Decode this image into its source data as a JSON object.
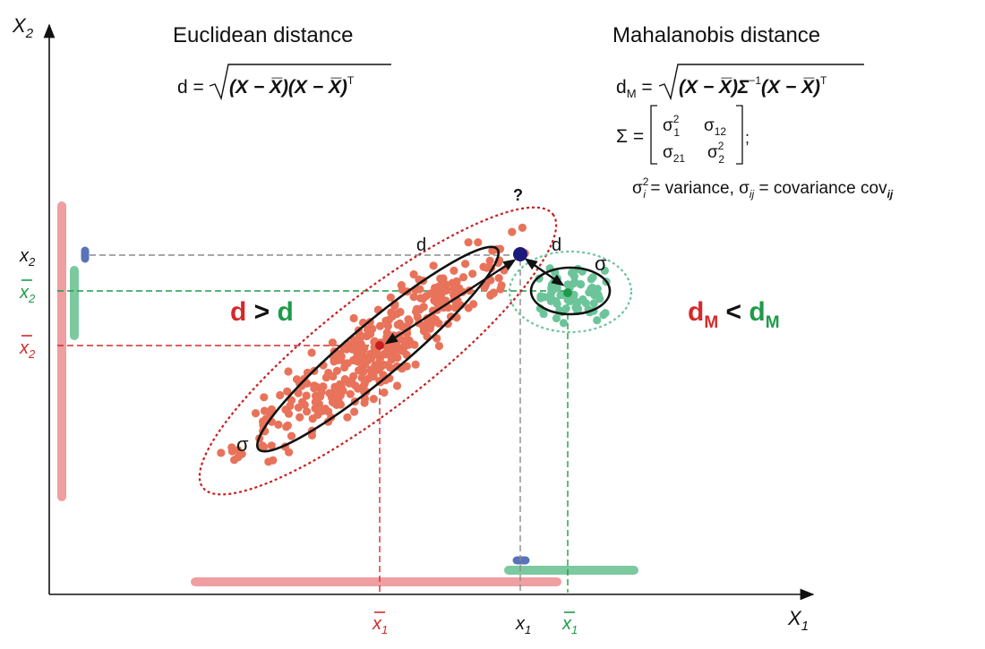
{
  "axes": {
    "x_label": "X",
    "x_sub": "1",
    "y_label": "X",
    "y_sub": "2"
  },
  "titles": {
    "euclidean": "Euclidean distance",
    "mahalanobis": "Mahalanobis distance"
  },
  "formulas": {
    "euclid_lhs": "d = ",
    "euclid_body": "(X − X̅)(X − X̅)",
    "euclid_sup": "T",
    "maha_lhs_d": "d",
    "maha_lhs_sub": "M",
    "maha_lhs_eq": " = ",
    "maha_body_a": "(X − X̅)Σ",
    "maha_body_sup1": "−1",
    "maha_body_b": "(X − X̅)",
    "maha_body_sup2": "T",
    "sigma_label": "Σ = ",
    "matrix": {
      "s11": "σ",
      "s11_sup": "2",
      "s11_sub": "1",
      "s12": "σ",
      "s12_sub": "12",
      "s21": "σ",
      "s21_sub": "21",
      "s22": "σ",
      "s22_sup": "2",
      "s22_sub": "2",
      "tail": ";"
    },
    "legend_a": "σ",
    "legend_a_sup": "2",
    "legend_a_sub": "i",
    "legend_b": " = variance, σ",
    "legend_b_sub": "ij",
    "legend_c": " = covariance cov",
    "legend_c_sub": "ij"
  },
  "labels": {
    "question": "?",
    "d_left": "d",
    "d_right": "d",
    "sigma_red": "σ",
    "sigma_green": "σ",
    "euclid_compare": {
      "d1": "d",
      "op": " > ",
      "d2": "d"
    },
    "maha_compare": {
      "d1": "d",
      "d1_sub": "M",
      "op": " < ",
      "d2": "d",
      "d2_sub": "M"
    }
  },
  "axis_marks": {
    "x2": "x",
    "x2_sub": "2",
    "x2bar_green": "x",
    "x2bar_green_sub": "2",
    "x2bar_red": "x",
    "x2bar_red_sub": "2",
    "x1bar_red": "x",
    "x1bar_red_sub": "1",
    "x1": "x",
    "x1_sub": "1",
    "x1bar_green": "x",
    "x1bar_green_sub": "1"
  },
  "colors": {
    "red": "#d42a2a",
    "red_point": "#e8735a",
    "red_bar": "#ef9ea2",
    "green": "#1f9a4a",
    "green_point": "#6cc59a",
    "green_bar": "#7cc9a0",
    "blue": "#5a72b8",
    "navy": "#1a1a7a",
    "gray": "#8a8a8a",
    "black": "#111111"
  }
}
